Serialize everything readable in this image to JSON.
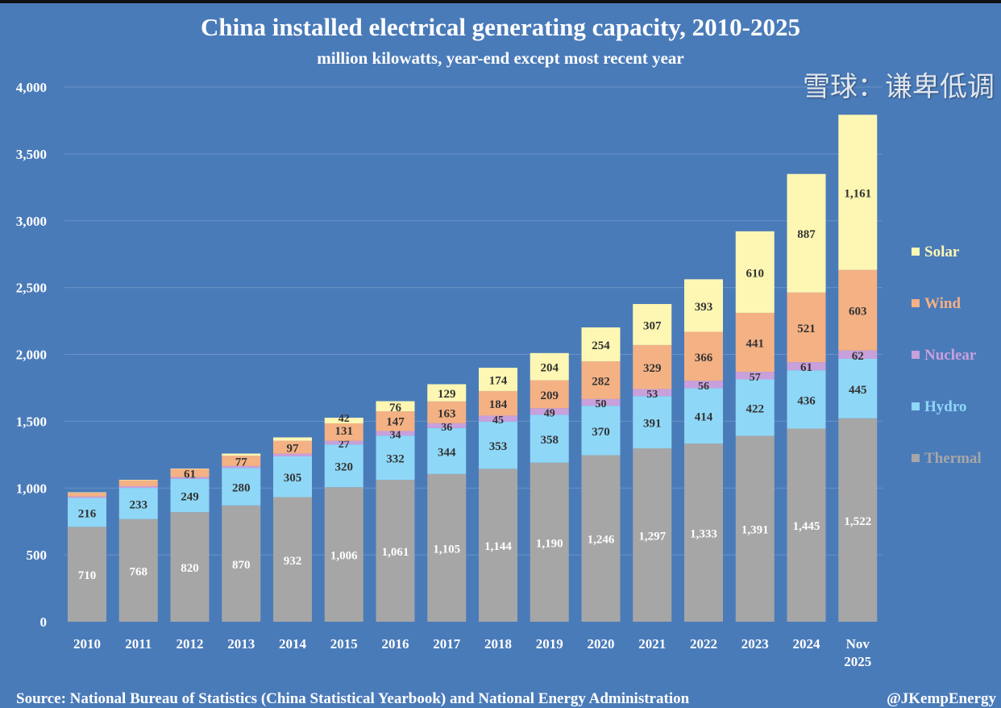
{
  "chart_data": {
    "type": "bar",
    "stacked": true,
    "title": "China installed electrical generating capacity, 2010-2025",
    "subtitle": "million kilowatts, year-end except most recent year",
    "categories": [
      "2010",
      "2011",
      "2012",
      "2013",
      "2014",
      "2015",
      "2016",
      "2017",
      "2018",
      "2019",
      "2020",
      "2021",
      "2022",
      "2023",
      "2024",
      "Nov 2025"
    ],
    "ylim": [
      0,
      4000
    ],
    "yticks": [
      0,
      500,
      1000,
      1500,
      2000,
      2500,
      3000,
      3500,
      4000
    ],
    "ytick_labels": [
      "0",
      "500",
      "1,000",
      "1,500",
      "2,000",
      "2,500",
      "3,000",
      "3,500",
      "4,000"
    ],
    "grid": true,
    "legend_placement": "right",
    "series": [
      {
        "name": "Thermal",
        "color": "#a6a6a6",
        "label_color": "#ffffff",
        "values": [
          710,
          768,
          820,
          870,
          932,
          1006,
          1061,
          1105,
          1144,
          1190,
          1246,
          1297,
          1333,
          1391,
          1445,
          1522
        ],
        "data_labels": [
          "710",
          "768",
          "820",
          "870",
          "932",
          "1,006",
          "1,061",
          "1,105",
          "1,144",
          "1,190",
          "1,246",
          "1,297",
          "1,333",
          "1,391",
          "1,445",
          "1,522"
        ]
      },
      {
        "name": "Hydro",
        "color": "#8ed7f7",
        "label_color": "#333333",
        "values": [
          216,
          233,
          249,
          280,
          305,
          320,
          332,
          344,
          353,
          358,
          370,
          391,
          414,
          422,
          436,
          445
        ],
        "data_labels": [
          "216",
          "233",
          "249",
          "280",
          "305",
          "320",
          "332",
          "344",
          "353",
          "358",
          "370",
          "391",
          "414",
          "422",
          "436",
          "445"
        ]
      },
      {
        "name": "Nuclear",
        "color": "#c8a0dc",
        "label_color": "#333333",
        "values": [
          11,
          13,
          13,
          15,
          20,
          27,
          34,
          36,
          45,
          49,
          50,
          53,
          56,
          57,
          61,
          62
        ],
        "data_labels": [
          null,
          null,
          null,
          null,
          null,
          "27",
          "34",
          "36",
          "45",
          "49",
          "50",
          "53",
          "56",
          "57",
          "61",
          "62"
        ]
      },
      {
        "name": "Wind",
        "color": "#f4b184",
        "label_color": "#333333",
        "values": [
          30,
          46,
          61,
          77,
          97,
          131,
          147,
          163,
          184,
          209,
          282,
          329,
          366,
          441,
          521,
          603
        ],
        "data_labels": [
          null,
          null,
          "61",
          "77",
          "97",
          "131",
          "147",
          "163",
          "184",
          "209",
          "282",
          "329",
          "366",
          "441",
          "521",
          "603"
        ]
      },
      {
        "name": "Solar",
        "color": "#fdf7b3",
        "label_color": "#333333",
        "values": [
          1,
          2,
          3,
          16,
          25,
          42,
          76,
          129,
          174,
          204,
          254,
          307,
          393,
          610,
          887,
          1161
        ],
        "data_labels": [
          null,
          null,
          null,
          null,
          null,
          "42",
          "76",
          "129",
          "174",
          "204",
          "254",
          "307",
          "393",
          "610",
          "887",
          "1,161"
        ]
      }
    ]
  },
  "footer": {
    "source": "Source: National Bureau of Statistics (China Statistical Yearbook) and National Energy Administration",
    "handle": "@JKempEnergy"
  },
  "watermark": "雪球：谦卑低调",
  "colors": {
    "background": "#4a7bb9"
  }
}
